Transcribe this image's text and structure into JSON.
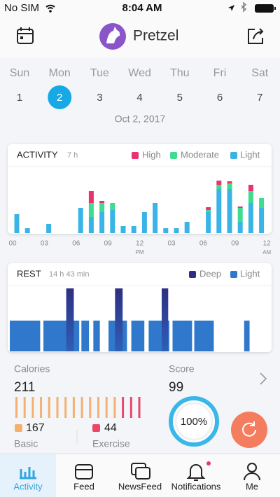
{
  "status": {
    "carrier": "No SIM",
    "time": "8:04 AM"
  },
  "header": {
    "name": "Pretzel"
  },
  "week": {
    "days": [
      "Sun",
      "Mon",
      "Tue",
      "Wed",
      "Thu",
      "Fri",
      "Sat"
    ],
    "dates": [
      1,
      2,
      3,
      4,
      5,
      6,
      7
    ],
    "selected": 1,
    "date": "Oct 2, 2017"
  },
  "activity": {
    "title": "ACTIVITY",
    "duration": "7 h",
    "x_labels": [
      "00",
      "03",
      "06",
      "09",
      "12",
      "03",
      "06",
      "09",
      "12"
    ],
    "x_sublabels": {
      "4": "PM",
      "8": "AM"
    },
    "series": [
      {
        "name": "Light",
        "color": "#3ab4e6",
        "values": [
          27,
          7,
          0,
          13,
          0,
          0,
          36,
          23,
          30,
          33,
          10,
          10,
          30,
          43,
          7,
          7,
          16,
          0,
          30,
          63,
          63,
          16,
          43,
          36
        ]
      },
      {
        "name": "Moderate",
        "color": "#3ddc8f",
        "values": [
          0,
          0,
          0,
          0,
          0,
          0,
          0,
          20,
          13,
          10,
          0,
          0,
          0,
          0,
          0,
          0,
          0,
          0,
          3,
          6,
          8,
          20,
          17,
          14
        ]
      },
      {
        "name": "High",
        "color": "#e8336e",
        "values": [
          0,
          0,
          0,
          0,
          0,
          0,
          0,
          17,
          3,
          0,
          0,
          0,
          0,
          0,
          0,
          0,
          0,
          0,
          4,
          6,
          3,
          2,
          9,
          0
        ]
      }
    ]
  },
  "rest": {
    "title": "REST",
    "duration": "14 h 43 min",
    "series": [
      {
        "name": "Deep",
        "color": "#2e2f82",
        "segments": [
          [
            5.2,
            5.9
          ],
          [
            9.7,
            10.4
          ],
          [
            14.0,
            14.6
          ]
        ]
      },
      {
        "name": "Light",
        "color": "#2f78cc",
        "segments": [
          [
            0,
            2.8
          ],
          [
            3.1,
            6.4
          ],
          [
            6.6,
            7.3
          ],
          [
            7.7,
            8.3
          ],
          [
            9.1,
            10.8
          ],
          [
            11.2,
            12.4
          ],
          [
            12.8,
            14.7
          ],
          [
            15.0,
            16.8
          ],
          [
            17.0,
            18.8
          ],
          [
            21.6,
            22.1
          ]
        ]
      }
    ]
  },
  "calories": {
    "label": "Calories",
    "total": 211,
    "basic": 167,
    "exercise": 44,
    "basic_label": "Basic",
    "exercise_label": "Exercise"
  },
  "score": {
    "label": "Score",
    "value": 99,
    "ring": "100%"
  },
  "tabs": [
    "Activity",
    "Feed",
    "NewsFeed",
    "Notifications",
    "Me"
  ]
}
